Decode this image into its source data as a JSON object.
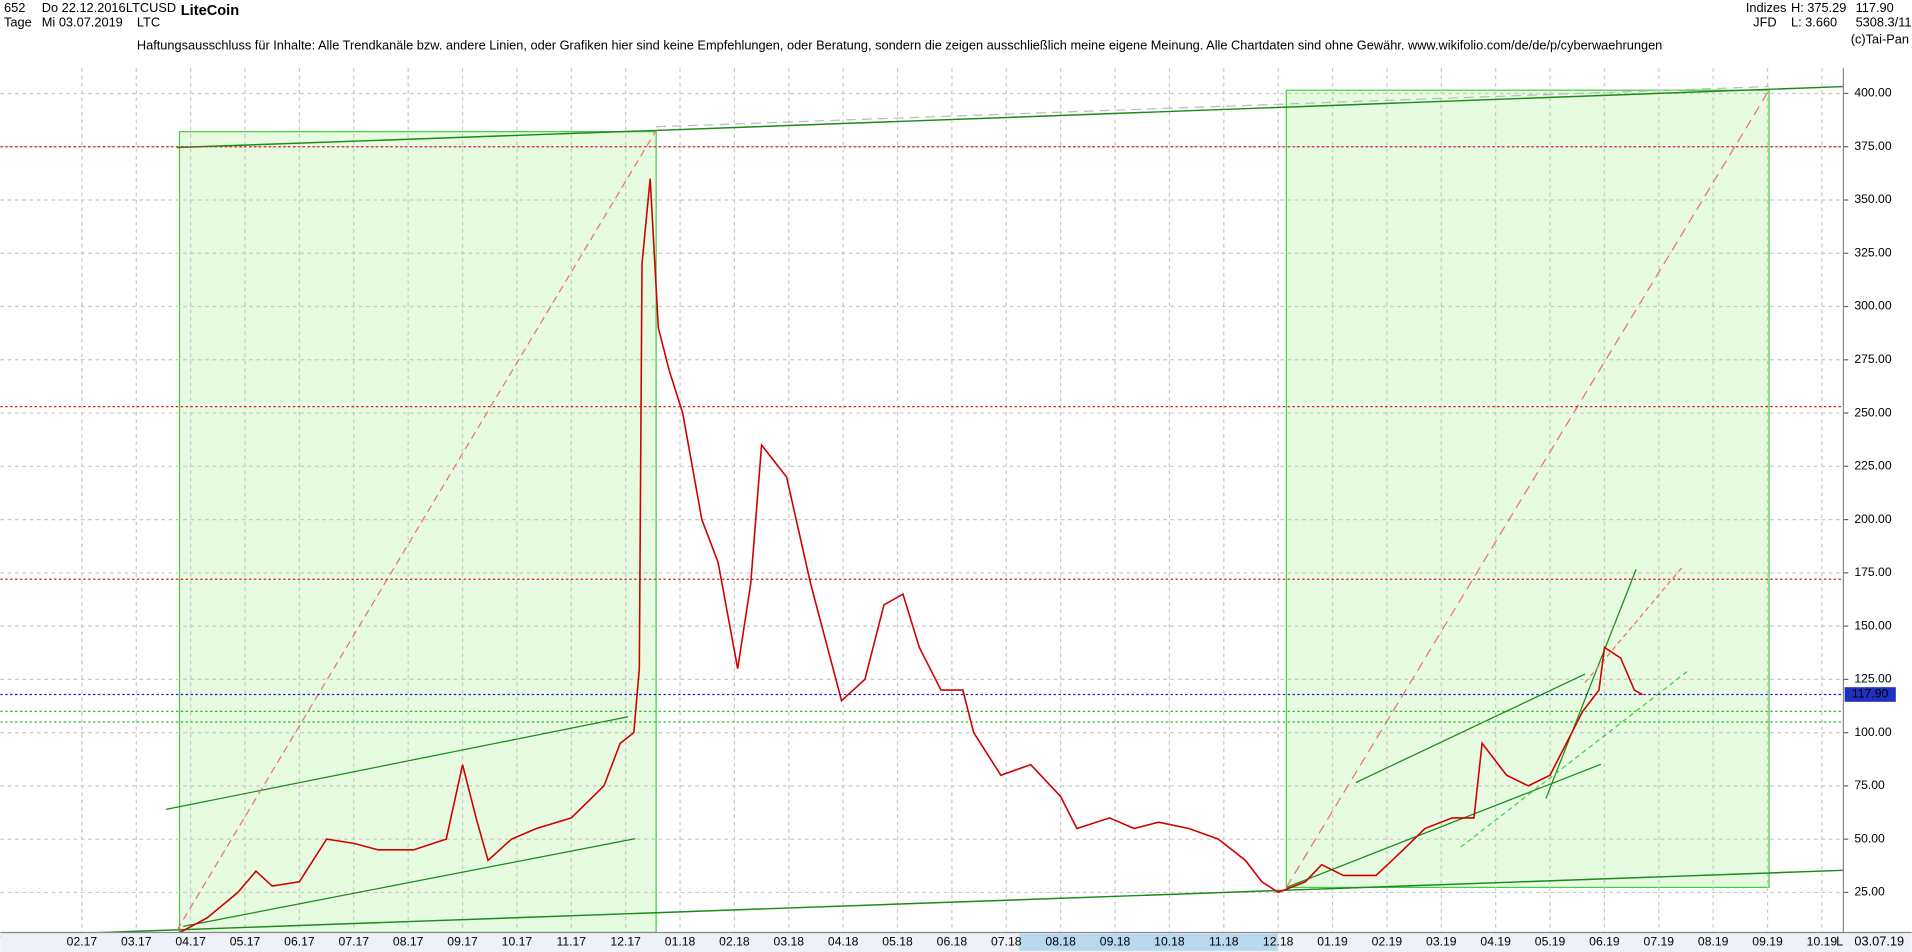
{
  "header": {
    "bars": "652",
    "start_date": "Do 22.12.2016",
    "end_date": "Mi 03.07.2019",
    "interval": "Tage",
    "symbol": "LTCUSD",
    "symbol_short": "LTC",
    "name": "LiteCoin",
    "group": "Indizes",
    "broker": "JFD",
    "high": "H: 375.29",
    "low": "L: 3.660",
    "last": "117.90",
    "extra": "5308.3/11!",
    "copyright": "(c)Tai-Pan",
    "disclaimer": "Haftungsausschluss für Inhalte: Alle Trendkanäle bzw. andere Linien, oder Grafiken hier sind keine Empfehlungen, oder Beratung, sondern die zeigen ausschließlich meine eigene Meinung. Alle Chartdaten sind ohne Gewähr.  www.wikifolio.com/de/de/p/cyberwaehrungen",
    "footer_date": "03.07.19",
    "footer_mode": "L"
  },
  "chart_data": {
    "type": "line",
    "series": [
      {
        "name": "LTCUSD",
        "color": "#d00000",
        "x": [
          -0.5,
          2.6,
          2.86,
          3.3,
          3.87,
          4.2,
          4.5,
          5.0,
          5.5,
          6.0,
          6.45,
          7.1,
          7.7,
          8.0,
          8.25,
          8.47,
          8.9,
          9.36,
          10.0,
          10.6,
          10.9,
          11.15,
          11.25,
          11.3,
          11.45,
          11.6,
          11.8,
          12.05,
          12.4,
          12.7,
          13.06,
          13.3,
          13.5,
          13.96,
          14.4,
          14.97,
          15.4,
          15.75,
          16.1,
          16.4,
          16.8,
          17.2,
          17.4,
          17.9,
          18.45,
          19.0,
          19.3,
          19.9,
          20.35,
          20.8,
          21.36,
          21.9,
          22.4,
          22.7,
          23.0,
          23.5,
          23.8,
          24.2,
          24.8,
          25.3,
          25.7,
          26.2,
          26.6,
          26.75,
          27.2,
          27.6,
          28.0,
          28.3,
          28.6,
          28.9,
          29.0,
          29.3,
          29.55,
          29.7
        ],
        "values": [
          4,
          4,
          7,
          13,
          25,
          35,
          28,
          30,
          50,
          48,
          45,
          45,
          50,
          85,
          60,
          40,
          50,
          55,
          60,
          75,
          95,
          100,
          130,
          320,
          360,
          290,
          270,
          250,
          200,
          180,
          130,
          170,
          235,
          220,
          170,
          115,
          125,
          160,
          165,
          140,
          120,
          120,
          100,
          80,
          85,
          70,
          55,
          60,
          55,
          58,
          55,
          50,
          40,
          30,
          25,
          30,
          38,
          33,
          33,
          45,
          55,
          60,
          60,
          95,
          80,
          75,
          80,
          95,
          110,
          120,
          140,
          135,
          120,
          117.9
        ]
      }
    ],
    "xlim": [
      -0.5,
      33.35
    ],
    "xticks": [
      {
        "value": 1,
        "label": "02.17"
      },
      {
        "value": 2,
        "label": "03.17"
      },
      {
        "value": 3,
        "label": "04.17"
      },
      {
        "value": 4,
        "label": "05.17"
      },
      {
        "value": 5,
        "label": "06.17"
      },
      {
        "value": 6,
        "label": "07.17"
      },
      {
        "value": 7,
        "label": "08.17"
      },
      {
        "value": 8,
        "label": "09.17"
      },
      {
        "value": 9,
        "label": "10.17"
      },
      {
        "value": 10,
        "label": "11.17"
      },
      {
        "value": 11,
        "label": "12.17"
      },
      {
        "value": 12,
        "label": "01.18"
      },
      {
        "value": 13,
        "label": "02.18"
      },
      {
        "value": 14,
        "label": "03.18"
      },
      {
        "value": 15,
        "label": "04.18"
      },
      {
        "value": 16,
        "label": "05.18"
      },
      {
        "value": 17,
        "label": "06.18"
      },
      {
        "value": 18,
        "label": "07.18"
      },
      {
        "value": 19,
        "label": "08.18"
      },
      {
        "value": 20,
        "label": "09.18"
      },
      {
        "value": 21,
        "label": "10.18"
      },
      {
        "value": 22,
        "label": "11.18"
      },
      {
        "value": 23,
        "label": "12.18"
      },
      {
        "value": 24,
        "label": "01.19"
      },
      {
        "value": 25,
        "label": "02.19"
      },
      {
        "value": 26,
        "label": "03.19"
      },
      {
        "value": 27,
        "label": "04.19"
      },
      {
        "value": 28,
        "label": "05.19"
      },
      {
        "value": 29,
        "label": "06.19"
      },
      {
        "value": 30,
        "label": "07.19"
      },
      {
        "value": 31,
        "label": "08.19"
      },
      {
        "value": 32,
        "label": "09.19"
      },
      {
        "value": 33,
        "label": "10.19"
      }
    ],
    "ylim": [
      6.2,
      426.7
    ],
    "yticks": [
      {
        "value": 25,
        "label": "25.00"
      },
      {
        "value": 50,
        "label": "50.00"
      },
      {
        "value": 75,
        "label": "75.00"
      },
      {
        "value": 100,
        "label": "100.00"
      },
      {
        "value": 125,
        "label": "125.00"
      },
      {
        "value": 150,
        "label": "150.00"
      },
      {
        "value": 175,
        "label": "175.00"
      },
      {
        "value": 200,
        "label": "200.00"
      },
      {
        "value": 225,
        "label": "225.00"
      },
      {
        "value": 250,
        "label": "250.00"
      },
      {
        "value": 275,
        "label": "275.00"
      },
      {
        "value": 300,
        "label": "300.00"
      },
      {
        "value": 325,
        "label": "325.00"
      },
      {
        "value": 350,
        "label": "350.00"
      },
      {
        "value": 375,
        "label": "375.00"
      },
      {
        "value": 400,
        "label": "400.00"
      }
    ],
    "grid": true,
    "reference_lines": [
      {
        "value": 375,
        "color": "#e02020"
      },
      {
        "value": 253,
        "color": "#e02020"
      },
      {
        "value": 172,
        "color": "#e02020"
      },
      {
        "value": 110,
        "color": "#30c030"
      },
      {
        "value": 105,
        "color": "#30c030"
      },
      {
        "value": 117.9,
        "color": "#2020d0"
      }
    ],
    "current_price": {
      "value": 117.9,
      "label": "117.90"
    }
  }
}
